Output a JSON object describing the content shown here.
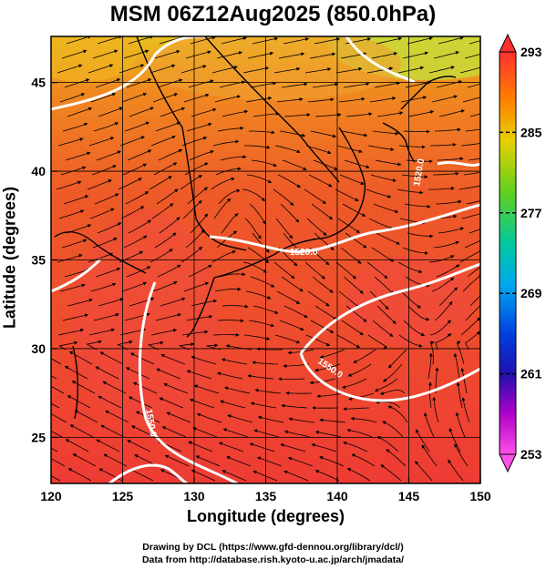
{
  "title": "MSM 06Z12Aug2025 (850.0hPa)",
  "xlabel": "Longitude (degrees)",
  "ylabel": "Latitude  (degrees)",
  "credits": [
    "Drawing by DCL (https://www.gfd-dennou.org/library/dcl/)",
    "Data from http://database.rish.kyoto-u.ac.jp/arch/jmadata/"
  ],
  "map": {
    "lon_range": [
      120,
      150
    ],
    "lat_range": [
      22.4,
      47.6
    ],
    "lon_ticks": [
      120,
      125,
      130,
      135,
      140,
      145,
      150
    ],
    "lat_ticks": [
      25,
      30,
      35,
      40,
      45
    ],
    "field": "temperature",
    "colors": {
      "warm": "#e8402a",
      "hot": "#f04848",
      "mid": "#f57a20",
      "cool": "#e8b020",
      "cold": "#c8d838"
    },
    "height_contour_labels": [
      "1520.0",
      "1550.0",
      "1560.0",
      "1500.0"
    ]
  },
  "colorbar": {
    "ticks": [
      293,
      285,
      277,
      269,
      261,
      253
    ],
    "range": [
      253,
      293
    ],
    "stops": [
      "#ff3030",
      "#ff7a00",
      "#e8c800",
      "#80e020",
      "#10c040",
      "#00c8b0",
      "#00a0ff",
      "#0040e0",
      "#1010c0",
      "#8000c0",
      "#e000d0",
      "#ff40e0"
    ]
  }
}
